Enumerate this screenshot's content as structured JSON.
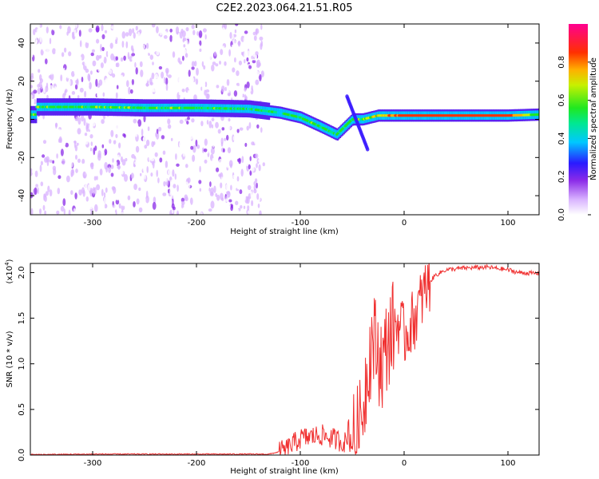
{
  "title": "C2E2.2023.064.21.51.R05",
  "top_panel": {
    "ylabel": "Frequency (Hz)",
    "xlabel": "Height of straight line (km)",
    "colorbar_label": "Normalized spectral amplitude",
    "xticks": [
      "-300",
      "-200",
      "-100",
      "0",
      "100"
    ],
    "yticks": [
      "40",
      "20",
      "0",
      "-20",
      "-40"
    ],
    "cticks": [
      "0.0",
      "0.2",
      "0.4",
      "0.6",
      "0.8"
    ]
  },
  "bottom_panel": {
    "ylabel": "SNR (10 * v/v)",
    "multiplier_base": "(x10",
    "multiplier_exp": "4",
    "multiplier_close": ")",
    "xlabel": "Height of straight line (km)",
    "xticks": [
      "-300",
      "-200",
      "-100",
      "0",
      "100"
    ],
    "yticks": [
      "0.0",
      "0.5",
      "1.0",
      "1.5",
      "2.0"
    ]
  },
  "chart_data": [
    {
      "type": "heatmap",
      "title": "C2E2.2023.064.21.51.R05",
      "xlabel": "Height of straight line (km)",
      "ylabel": "Frequency (Hz)",
      "xlim": [
        -360,
        130
      ],
      "ylim": [
        -50,
        50
      ],
      "colorbar": {
        "label": "Normalized spectral amplitude",
        "range": [
          0,
          1
        ],
        "colormap": "white-purple-blue-cyan-green-yellow-red-magenta"
      },
      "ridge": [
        {
          "x": -355,
          "f": 6.5,
          "amp": 0.55
        },
        {
          "x": -300,
          "f": 6.5,
          "amp": 0.55
        },
        {
          "x": -250,
          "f": 6.0,
          "amp": 0.55
        },
        {
          "x": -200,
          "f": 6.0,
          "amp": 0.55
        },
        {
          "x": -150,
          "f": 5.5,
          "amp": 0.5
        },
        {
          "x": -120,
          "f": 3.5,
          "amp": 0.5
        },
        {
          "x": -100,
          "f": 1.0,
          "amp": 0.55
        },
        {
          "x": -80,
          "f": -4.0,
          "amp": 0.55
        },
        {
          "x": -65,
          "f": -8.0,
          "amp": 0.5
        },
        {
          "x": -50,
          "f": 0.0,
          "amp": 0.55
        },
        {
          "x": -40,
          "f": 0.0,
          "amp": 0.55
        },
        {
          "x": -25,
          "f": 2.0,
          "amp": 0.7
        },
        {
          "x": 0,
          "f": 2.0,
          "amp": 0.9
        },
        {
          "x": 50,
          "f": 2.0,
          "amp": 0.95
        },
        {
          "x": 100,
          "f": 2.0,
          "amp": 0.9
        },
        {
          "x": 130,
          "f": 2.5,
          "amp": 0.6
        }
      ],
      "noise_region_xlim": [
        -360,
        -135
      ]
    },
    {
      "type": "line",
      "xlabel": "Height of straight line (km)",
      "ylabel": "SNR (10 * v/v)",
      "xlim": [
        -360,
        130
      ],
      "ylim": [
        0,
        2.1
      ],
      "y_multiplier": "x10^4",
      "series": [
        {
          "color": "#f03030",
          "x": [
            -360,
            -300,
            -200,
            -130,
            -115,
            -100,
            -80,
            -60,
            -50,
            -42,
            -38,
            -35,
            -30,
            -25,
            -20,
            -15,
            -10,
            -5,
            0,
            10,
            20,
            25,
            30,
            40,
            60,
            80,
            100,
            110,
            130
          ],
          "y": [
            0.005,
            0.01,
            0.01,
            0.01,
            0.05,
            0.18,
            0.22,
            0.15,
            0.12,
            0.3,
            0.7,
            1.0,
            1.3,
            1.1,
            1.0,
            1.3,
            1.4,
            1.45,
            1.3,
            1.5,
            1.8,
            1.9,
            1.97,
            2.03,
            2.05,
            2.06,
            2.03,
            2.0,
            1.99
          ]
        }
      ]
    }
  ]
}
